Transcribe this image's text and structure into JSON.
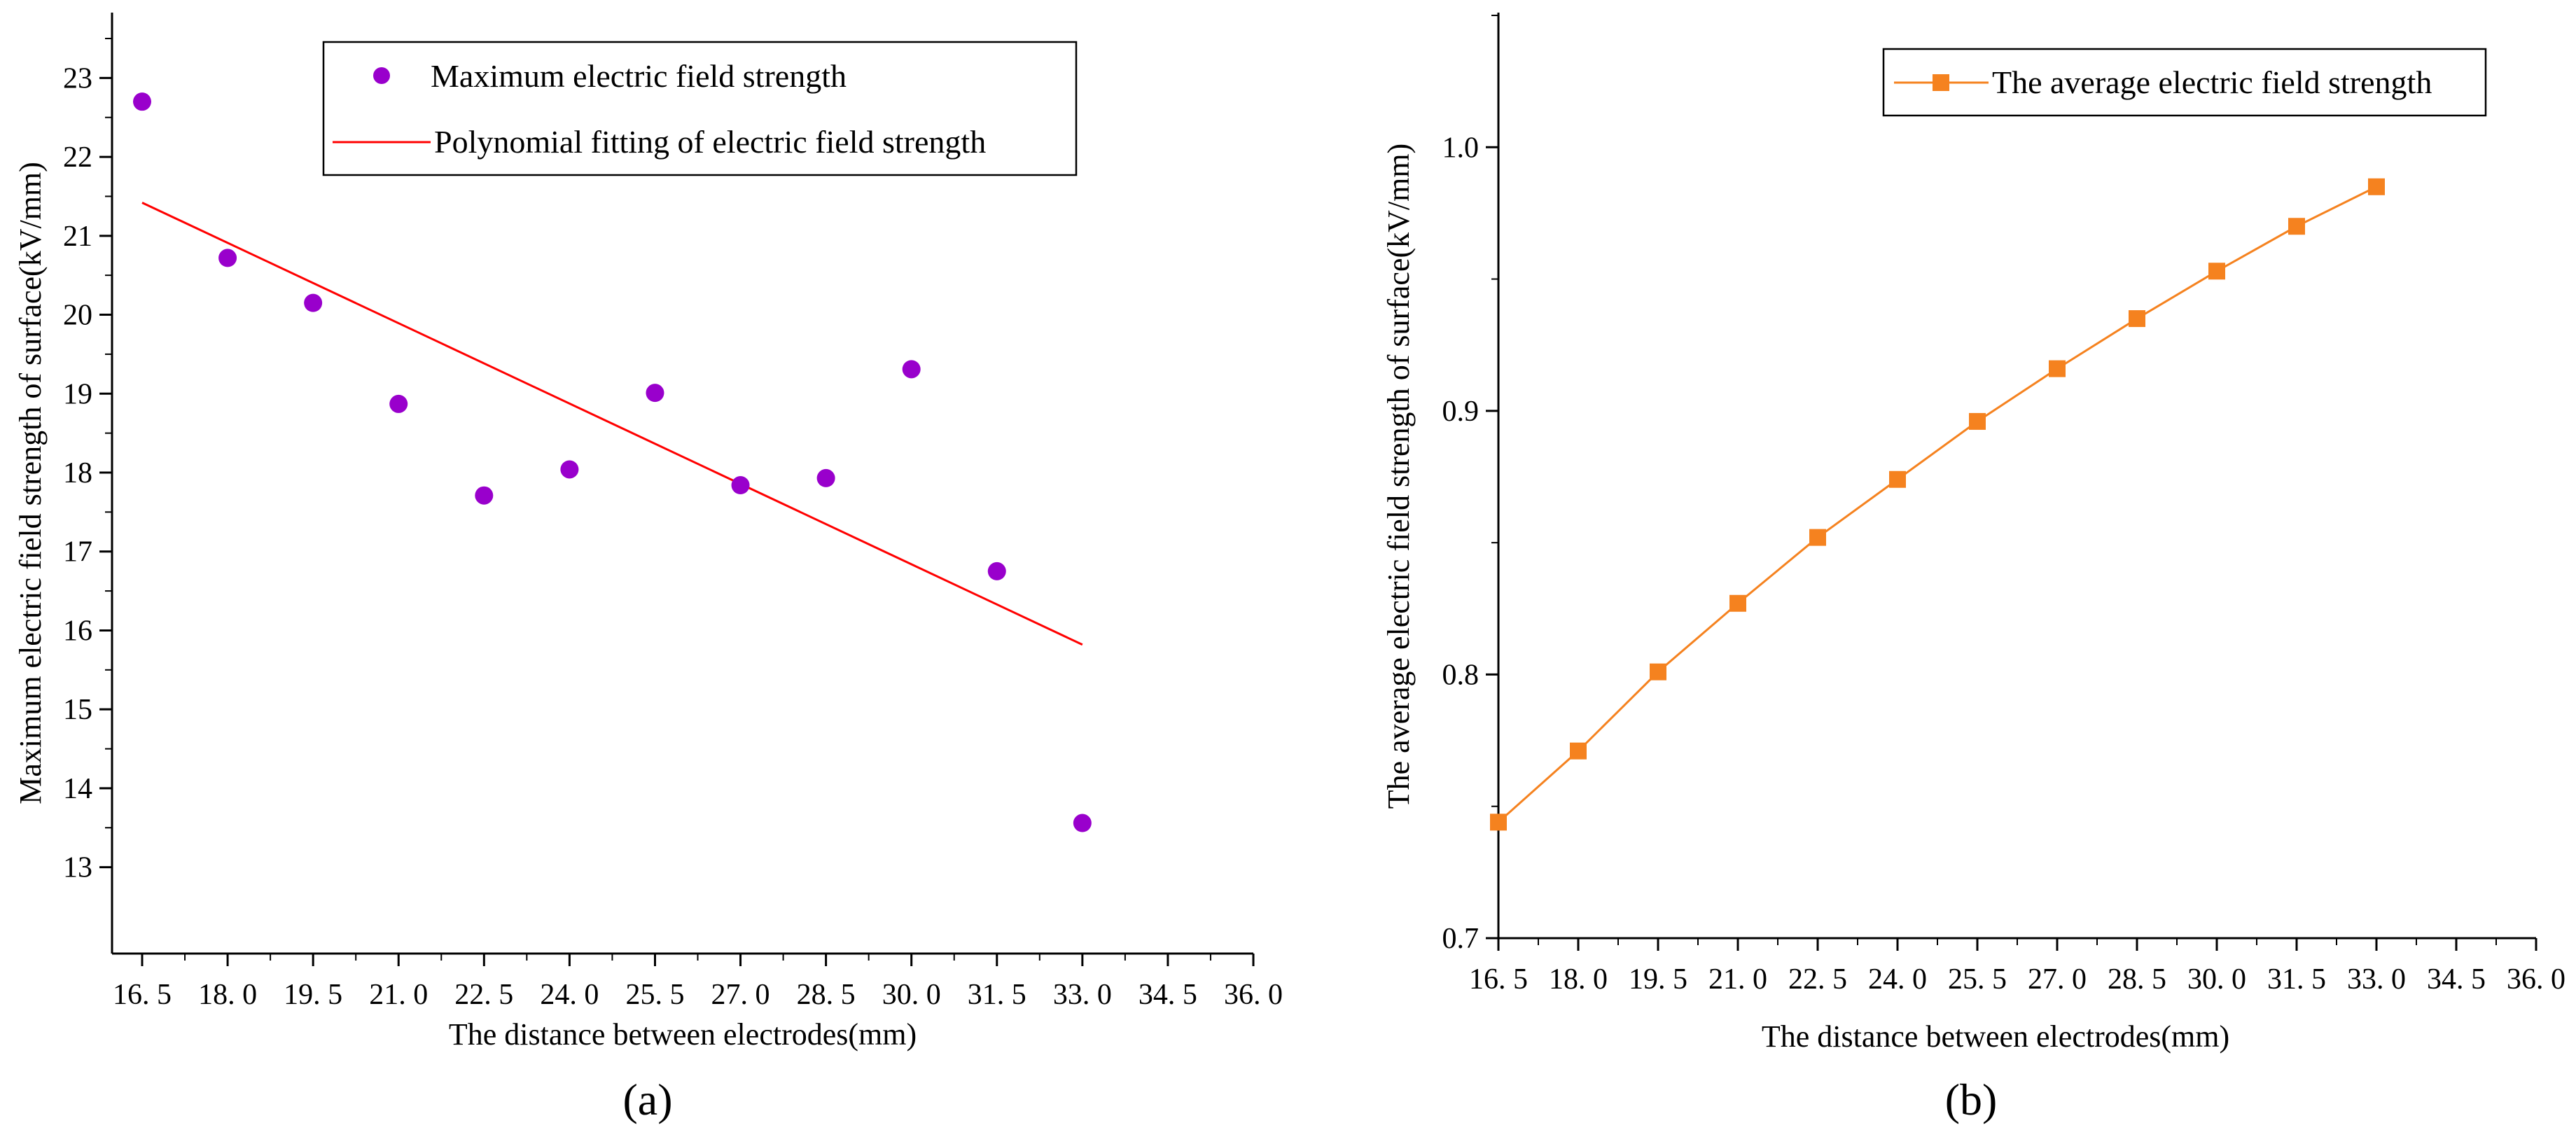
{
  "chart_data": [
    {
      "type": "scatter",
      "panel_label": "(a)",
      "xlabel": "The distance between electrodes(mm)",
      "ylabel": "Maximum electric field strength of surface(kV/mm)",
      "x_ticks": [
        "16. 5",
        "18. 0",
        "19. 5",
        "21. 0",
        "22. 5",
        "24. 0",
        "25. 5",
        "27. 0",
        "28. 5",
        "30. 0",
        "31. 5",
        "33. 0",
        "34. 5",
        "36. 0"
      ],
      "y_ticks": [
        "13",
        "14",
        "15",
        "16",
        "17",
        "18",
        "19",
        "20",
        "21",
        "22",
        "23"
      ],
      "xlim": [
        16.5,
        36.0
      ],
      "ylim": [
        12.5,
        23.5
      ],
      "grid": false,
      "legend_position": "top-right",
      "series": [
        {
          "name": "Maximum electric field strength",
          "kind": "scatter",
          "color": "#9900cc",
          "x": [
            16.5,
            18.0,
            19.5,
            21.0,
            22.5,
            24.0,
            25.5,
            27.0,
            28.5,
            30.0,
            31.5,
            33.0
          ],
          "y": [
            22.7,
            20.72,
            20.15,
            18.87,
            17.71,
            18.04,
            19.01,
            17.84,
            17.93,
            19.31,
            16.75,
            13.56
          ]
        },
        {
          "name": "Polynomial fitting of electric field strength",
          "kind": "line",
          "color": "#ff0000",
          "x": [
            16.5,
            33.0
          ],
          "y": [
            21.42,
            15.82
          ]
        }
      ]
    },
    {
      "type": "line",
      "panel_label": "(b)",
      "xlabel": "The distance between electrodes(mm)",
      "ylabel": "The average electric field strength of surface(kV/mm)",
      "x_ticks": [
        "16. 5",
        "18. 0",
        "19. 5",
        "21. 0",
        "22. 5",
        "24. 0",
        "25. 5",
        "27. 0",
        "28. 5",
        "30. 0",
        "31. 5",
        "33. 0",
        "34. 5",
        "36. 0"
      ],
      "y_ticks": [
        "0.7",
        "0.8",
        "0.9",
        "1.0"
      ],
      "xlim": [
        16.5,
        36.0
      ],
      "ylim": [
        0.7,
        1.05
      ],
      "grid": false,
      "legend_position": "top-right",
      "series": [
        {
          "name": "The average electric field strength",
          "kind": "line-square",
          "color": "#f5821f",
          "x": [
            16.5,
            18.0,
            19.5,
            21.0,
            22.5,
            24.0,
            25.5,
            27.0,
            28.5,
            30.0,
            31.5,
            33.0
          ],
          "y": [
            0.744,
            0.771,
            0.801,
            0.827,
            0.852,
            0.874,
            0.896,
            0.916,
            0.935,
            0.953,
            0.97,
            0.985
          ]
        }
      ]
    }
  ]
}
